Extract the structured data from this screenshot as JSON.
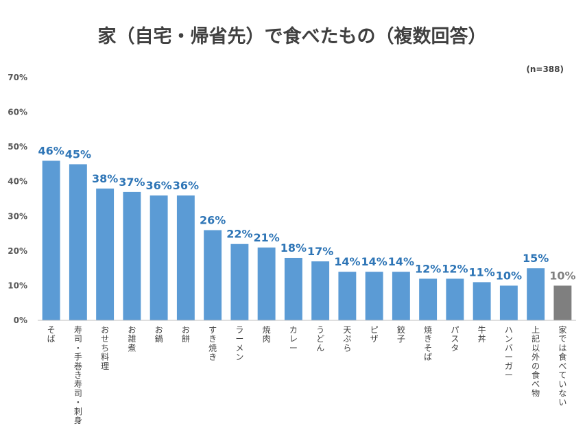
{
  "chart_data": {
    "type": "bar",
    "title": "家（自宅・帰省先）で食べたもの（複数回答）",
    "note": "(n=388)",
    "xlabel": "",
    "ylabel": "",
    "ylim": [
      0,
      70
    ],
    "yticks": [
      "0%",
      "10%",
      "20%",
      "30%",
      "40%",
      "50%",
      "60%",
      "70%"
    ],
    "grid": false,
    "legend": "none",
    "categories": [
      "そば",
      "寿司・手巻き寿司・刺身",
      "おせち料理",
      "お雑煮",
      "お鍋",
      "お餅",
      "すき焼き",
      "ラーメン",
      "焼肉",
      "カレー",
      "うどん",
      "天ぷら",
      "ピザ",
      "餃子",
      "焼きそば",
      "パスタ",
      "牛丼",
      "ハンバーガー",
      "上記以外の食べ物",
      "家では食べていない"
    ],
    "values": [
      46,
      45,
      38,
      37,
      36,
      36,
      26,
      22,
      21,
      18,
      17,
      14,
      14,
      14,
      12,
      12,
      11,
      10,
      15,
      10
    ],
    "value_labels": [
      "46%",
      "45%",
      "38%",
      "37%",
      "36%",
      "36%",
      "26%",
      "22%",
      "21%",
      "18%",
      "17%",
      "14%",
      "14%",
      "14%",
      "12%",
      "12%",
      "11%",
      "10%",
      "15%",
      "10%"
    ],
    "colors": {
      "bar": "#5b9bd5",
      "bar_highlight": "#7f7f7f",
      "label": "#2e75b6",
      "label_highlight": "#7f7f7f",
      "axis": "#bfbfbf"
    },
    "highlight_index": 19
  }
}
